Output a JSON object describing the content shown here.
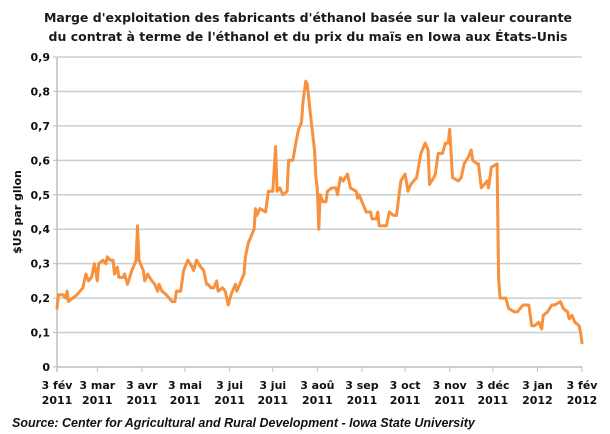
{
  "chart_data": {
    "type": "line",
    "title_lines": [
      "Marge d'exploitation des fabricants d'éthanol basée sur la valeur courante",
      "du contrat à terme de l'éthanol et du prix du maïs en Iowa aux États-Unis"
    ],
    "xlabel": "",
    "ylabel": "$US par gllon",
    "ylim": [
      0,
      0.9
    ],
    "xlim": [
      "2011-02-03",
      "2012-02-03"
    ],
    "yticks": [
      "0",
      "0,1",
      "0,2",
      "0,3",
      "0,4",
      "0,5",
      "0,6",
      "0,7",
      "0,8",
      "0,9"
    ],
    "xticks": [
      {
        "date": "2011-02-03",
        "line1": "3 fév",
        "line2": "2011"
      },
      {
        "date": "2011-03-03",
        "line1": "3 mar",
        "line2": "2011"
      },
      {
        "date": "2011-04-03",
        "line1": "3 avr",
        "line2": "2011"
      },
      {
        "date": "2011-05-03",
        "line1": "3 mai",
        "line2": "2011"
      },
      {
        "date": "2011-06-03",
        "line1": "3 jui",
        "line2": "2011"
      },
      {
        "date": "2011-07-03",
        "line1": "3 jui",
        "line2": "2011"
      },
      {
        "date": "2011-08-03",
        "line1": "3 aoû",
        "line2": "2011"
      },
      {
        "date": "2011-09-03",
        "line1": "3 sep",
        "line2": "2011"
      },
      {
        "date": "2011-10-03",
        "line1": "3 oct",
        "line2": "2011"
      },
      {
        "date": "2011-11-03",
        "line1": "3 nov",
        "line2": "2011"
      },
      {
        "date": "2011-12-03",
        "line1": "3 déc",
        "line2": "2011"
      },
      {
        "date": "2012-01-03",
        "line1": "3 jan",
        "line2": "2012"
      },
      {
        "date": "2012-02-03",
        "line1": "3 fév",
        "line2": "2012"
      }
    ],
    "grid": true,
    "line_color": "#f7913d",
    "grid_color": "#c5d0d0",
    "source": "Source: Center for Agricultural and Rural Development - Iowa State University",
    "series": [
      {
        "points": [
          [
            "2011-02-03",
            0.17
          ],
          [
            "2011-02-04",
            0.21
          ],
          [
            "2011-02-07",
            0.21
          ],
          [
            "2011-02-09",
            0.2
          ],
          [
            "2011-02-10",
            0.22
          ],
          [
            "2011-02-11",
            0.19
          ],
          [
            "2011-02-14",
            0.2
          ],
          [
            "2011-02-17",
            0.21
          ],
          [
            "2011-02-19",
            0.22
          ],
          [
            "2011-02-21",
            0.23
          ],
          [
            "2011-02-23",
            0.27
          ],
          [
            "2011-02-25",
            0.25
          ],
          [
            "2011-02-27",
            0.26
          ],
          [
            "2011-03-01",
            0.3
          ],
          [
            "2011-03-03",
            0.25
          ],
          [
            "2011-03-04",
            0.3
          ],
          [
            "2011-03-07",
            0.31
          ],
          [
            "2011-03-09",
            0.3
          ],
          [
            "2011-03-10",
            0.32
          ],
          [
            "2011-03-12",
            0.31
          ],
          [
            "2011-03-14",
            0.31
          ],
          [
            "2011-03-15",
            0.27
          ],
          [
            "2011-03-17",
            0.29
          ],
          [
            "2011-03-18",
            0.26
          ],
          [
            "2011-03-21",
            0.26
          ],
          [
            "2011-03-22",
            0.27
          ],
          [
            "2011-03-24",
            0.24
          ],
          [
            "2011-03-27",
            0.28
          ],
          [
            "2011-03-29",
            0.3
          ],
          [
            "2011-03-30",
            0.31
          ],
          [
            "2011-03-31",
            0.41
          ],
          [
            "2011-04-01",
            0.31
          ],
          [
            "2011-04-04",
            0.28
          ],
          [
            "2011-04-05",
            0.25
          ],
          [
            "2011-04-07",
            0.27
          ],
          [
            "2011-04-10",
            0.25
          ],
          [
            "2011-04-12",
            0.24
          ],
          [
            "2011-04-14",
            0.22
          ],
          [
            "2011-04-15",
            0.24
          ],
          [
            "2011-04-17",
            0.22
          ],
          [
            "2011-04-20",
            0.21
          ],
          [
            "2011-04-24",
            0.19
          ],
          [
            "2011-04-26",
            0.19
          ],
          [
            "2011-04-27",
            0.22
          ],
          [
            "2011-04-30",
            0.22
          ],
          [
            "2011-05-02",
            0.28
          ],
          [
            "2011-05-03",
            0.29
          ],
          [
            "2011-05-05",
            0.31
          ],
          [
            "2011-05-08",
            0.29
          ],
          [
            "2011-05-09",
            0.28
          ],
          [
            "2011-05-11",
            0.31
          ],
          [
            "2011-05-14",
            0.29
          ],
          [
            "2011-05-16",
            0.28
          ],
          [
            "2011-05-18",
            0.24
          ],
          [
            "2011-05-19",
            0.24
          ],
          [
            "2011-05-21",
            0.23
          ],
          [
            "2011-05-23",
            0.23
          ],
          [
            "2011-05-25",
            0.25
          ],
          [
            "2011-05-26",
            0.22
          ],
          [
            "2011-05-29",
            0.23
          ],
          [
            "2011-05-31",
            0.22
          ],
          [
            "2011-06-02",
            0.18
          ],
          [
            "2011-06-04",
            0.21
          ],
          [
            "2011-06-07",
            0.24
          ],
          [
            "2011-06-08",
            0.22
          ],
          [
            "2011-06-11",
            0.25
          ],
          [
            "2011-06-13",
            0.27
          ],
          [
            "2011-06-14",
            0.32
          ],
          [
            "2011-06-16",
            0.36
          ],
          [
            "2011-06-20",
            0.4
          ],
          [
            "2011-06-21",
            0.46
          ],
          [
            "2011-06-22",
            0.44
          ],
          [
            "2011-06-24",
            0.46
          ],
          [
            "2011-06-28",
            0.45
          ],
          [
            "2011-06-30",
            0.51
          ],
          [
            "2011-07-03",
            0.51
          ],
          [
            "2011-07-05",
            0.64
          ],
          [
            "2011-07-06",
            0.51
          ],
          [
            "2011-07-08",
            0.52
          ],
          [
            "2011-07-10",
            0.5
          ],
          [
            "2011-07-13",
            0.51
          ],
          [
            "2011-07-14",
            0.6
          ],
          [
            "2011-07-17",
            0.6
          ],
          [
            "2011-07-19",
            0.65
          ],
          [
            "2011-07-21",
            0.69
          ],
          [
            "2011-07-23",
            0.71
          ],
          [
            "2011-07-24",
            0.77
          ],
          [
            "2011-07-26",
            0.83
          ],
          [
            "2011-07-27",
            0.82
          ],
          [
            "2011-07-29",
            0.74
          ],
          [
            "2011-08-01",
            0.63
          ],
          [
            "2011-08-02",
            0.55
          ],
          [
            "2011-08-03",
            0.52
          ],
          [
            "2011-08-04",
            0.4
          ],
          [
            "2011-08-05",
            0.5
          ],
          [
            "2011-08-07",
            0.48
          ],
          [
            "2011-08-09",
            0.48
          ],
          [
            "2011-08-10",
            0.51
          ],
          [
            "2011-08-13",
            0.52
          ],
          [
            "2011-08-16",
            0.52
          ],
          [
            "2011-08-17",
            0.5
          ],
          [
            "2011-08-19",
            0.55
          ],
          [
            "2011-08-21",
            0.54
          ],
          [
            "2011-08-24",
            0.56
          ],
          [
            "2011-08-26",
            0.52
          ],
          [
            "2011-08-30",
            0.51
          ],
          [
            "2011-08-31",
            0.49
          ],
          [
            "2011-09-01",
            0.5
          ],
          [
            "2011-09-06",
            0.45
          ],
          [
            "2011-09-09",
            0.45
          ],
          [
            "2011-09-10",
            0.43
          ],
          [
            "2011-09-13",
            0.43
          ],
          [
            "2011-09-14",
            0.45
          ],
          [
            "2011-09-15",
            0.41
          ],
          [
            "2011-09-20",
            0.41
          ],
          [
            "2011-09-22",
            0.45
          ],
          [
            "2011-09-25",
            0.44
          ],
          [
            "2011-09-27",
            0.44
          ],
          [
            "2011-09-30",
            0.54
          ],
          [
            "2011-10-03",
            0.56
          ],
          [
            "2011-10-05",
            0.51
          ],
          [
            "2011-10-07",
            0.53
          ],
          [
            "2011-10-11",
            0.55
          ],
          [
            "2011-10-14",
            0.62
          ],
          [
            "2011-10-17",
            0.65
          ],
          [
            "2011-10-19",
            0.63
          ],
          [
            "2011-10-20",
            0.53
          ],
          [
            "2011-10-23",
            0.55
          ],
          [
            "2011-10-24",
            0.56
          ],
          [
            "2011-10-26",
            0.62
          ],
          [
            "2011-10-29",
            0.62
          ],
          [
            "2011-10-31",
            0.65
          ],
          [
            "2011-11-02",
            0.65
          ],
          [
            "2011-11-03",
            0.69
          ],
          [
            "2011-11-05",
            0.55
          ],
          [
            "2011-11-09",
            0.54
          ],
          [
            "2011-11-11",
            0.55
          ],
          [
            "2011-11-13",
            0.59
          ],
          [
            "2011-11-16",
            0.61
          ],
          [
            "2011-11-18",
            0.63
          ],
          [
            "2011-11-19",
            0.6
          ],
          [
            "2011-11-22",
            0.59
          ],
          [
            "2011-11-23",
            0.59
          ],
          [
            "2011-11-25",
            0.52
          ],
          [
            "2011-11-27",
            0.53
          ],
          [
            "2011-11-29",
            0.54
          ],
          [
            "2011-11-30",
            0.52
          ],
          [
            "2011-12-02",
            0.58
          ],
          [
            "2011-12-06",
            0.59
          ],
          [
            "2011-12-07",
            0.26
          ],
          [
            "2011-12-08",
            0.2
          ],
          [
            "2011-12-12",
            0.2
          ],
          [
            "2011-12-14",
            0.17
          ],
          [
            "2011-12-18",
            0.16
          ],
          [
            "2011-12-20",
            0.16
          ],
          [
            "2011-12-22",
            0.17
          ],
          [
            "2011-12-24",
            0.18
          ],
          [
            "2011-12-28",
            0.18
          ],
          [
            "2011-12-30",
            0.12
          ],
          [
            "2012-01-01",
            0.12
          ],
          [
            "2012-01-04",
            0.13
          ],
          [
            "2012-01-06",
            0.11
          ],
          [
            "2012-01-07",
            0.15
          ],
          [
            "2012-01-10",
            0.16
          ],
          [
            "2012-01-13",
            0.18
          ],
          [
            "2012-01-15",
            0.18
          ],
          [
            "2012-01-19",
            0.19
          ],
          [
            "2012-01-21",
            0.17
          ],
          [
            "2012-01-24",
            0.16
          ],
          [
            "2012-01-25",
            0.14
          ],
          [
            "2012-01-27",
            0.15
          ],
          [
            "2012-01-29",
            0.13
          ],
          [
            "2012-02-01",
            0.12
          ],
          [
            "2012-02-02",
            0.1
          ],
          [
            "2012-02-03",
            0.07
          ]
        ]
      }
    ]
  }
}
